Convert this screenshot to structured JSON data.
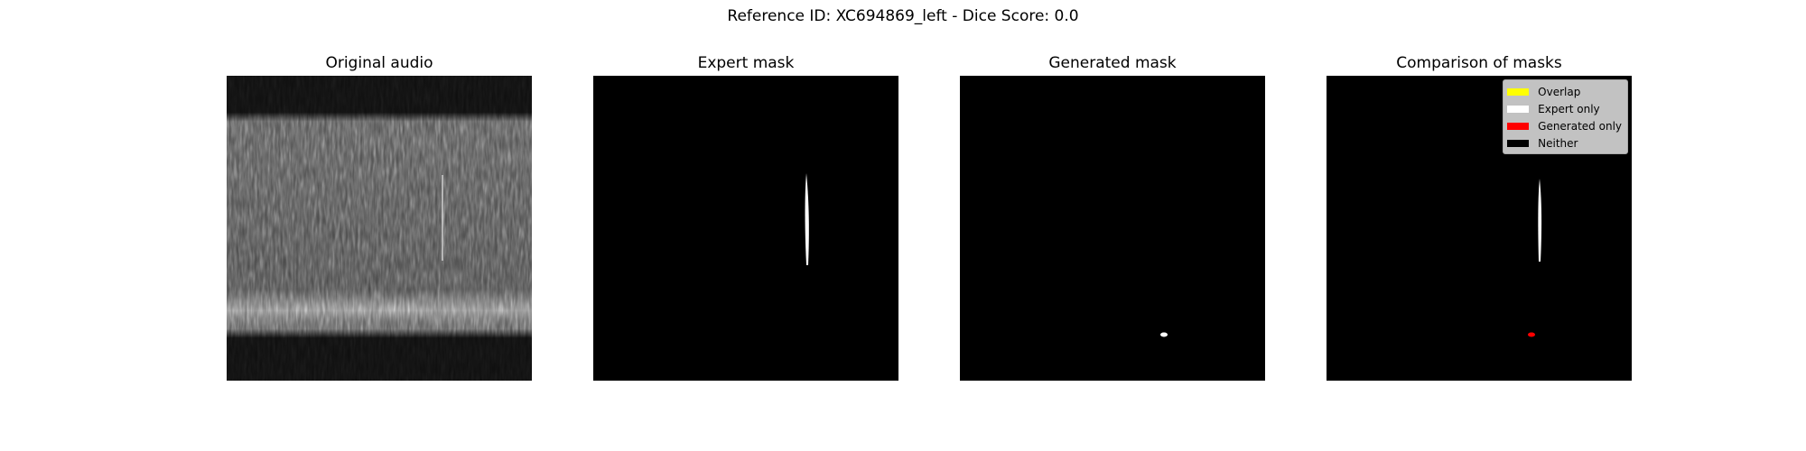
{
  "figure": {
    "suptitle": "Reference ID: XC694869_left - Dice Score: 0.0"
  },
  "panels": [
    {
      "title": "Original audio"
    },
    {
      "title": "Expert mask"
    },
    {
      "title": "Generated mask"
    },
    {
      "title": "Comparison of masks"
    }
  ],
  "legend": {
    "items": [
      {
        "label": "Overlap",
        "color": "#ffff00"
      },
      {
        "label": "Expert only",
        "color": "#ffffff"
      },
      {
        "label": "Generated only",
        "color": "#ff0000"
      },
      {
        "label": "Neither",
        "color": "#000000"
      }
    ]
  },
  "dice_score": 0.0
}
